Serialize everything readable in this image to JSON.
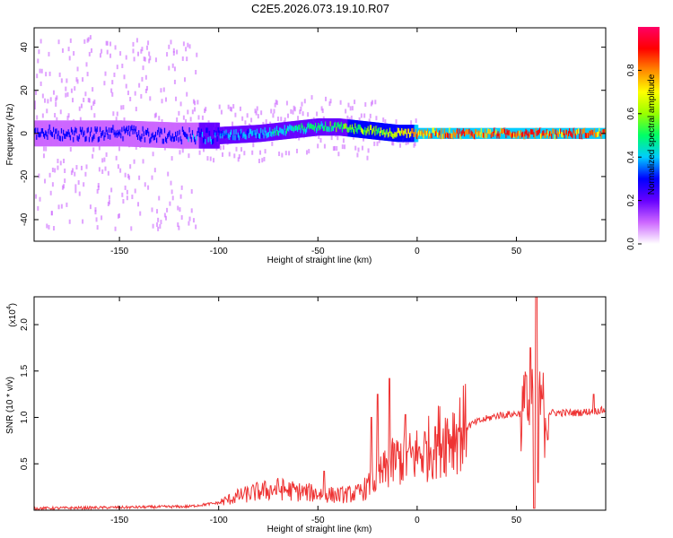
{
  "figure": {
    "title": "C2E5.2026.073.19.10.R07"
  },
  "chart_data": [
    {
      "type": "heatmap",
      "xlabel": "Height of straight line (km)",
      "ylabel": "Frequency (Hz)",
      "xlim": [
        -193,
        95
      ],
      "ylim": [
        -50,
        49
      ],
      "xticks": [
        -150,
        -100,
        -50,
        0,
        50
      ],
      "yticks": [
        -40,
        -20,
        0,
        20,
        40
      ],
      "colorbar": {
        "label": "Normalized spectral amplitude",
        "range": [
          0,
          1
        ],
        "ticks": [
          "0.0",
          "0.2",
          "0.4",
          "0.6",
          "0.8"
        ],
        "colors": [
          "#ffffff",
          "#cc66ff",
          "#6600ff",
          "#0000ff",
          "#00ccff",
          "#00ff66",
          "#99ff00",
          "#ffff00",
          "#ff8800",
          "#ff0000",
          "#ff0066"
        ]
      },
      "ridge": {
        "x": [
          -193,
          -150,
          -120,
          -100,
          -80,
          -60,
          -50,
          -40,
          -30,
          -20,
          -10,
          0,
          10,
          30,
          60,
          95
        ],
        "center_freq": [
          0,
          0,
          -1,
          -1,
          0,
          2,
          3,
          3,
          2,
          1,
          0,
          0,
          0,
          0,
          0,
          0
        ],
        "amplitude": [
          0.35,
          0.35,
          0.35,
          0.4,
          0.45,
          0.5,
          0.55,
          0.6,
          0.65,
          0.7,
          0.75,
          0.9,
          0.9,
          0.95,
          0.95,
          0.95
        ]
      }
    },
    {
      "type": "line",
      "xlabel": "Height of straight line (km)",
      "ylabel": "SNR (10 * v/v)",
      "yscale_label": "(x10",
      "yscale_exp": "4",
      "xlim": [
        -193,
        95
      ],
      "ylim": [
        0,
        2.3
      ],
      "xticks": [
        -150,
        -100,
        -50,
        0,
        50
      ],
      "yticks": [
        "0.5",
        "1.0",
        "1.5",
        "2.0"
      ],
      "color": "#ee3333",
      "envelope": {
        "x": [
          -193,
          -150,
          -115,
          -100,
          -90,
          -80,
          -70,
          -60,
          -50,
          -40,
          -30,
          -25,
          -20,
          -15,
          -10,
          -5,
          0,
          5,
          10,
          20,
          30,
          40,
          55,
          60,
          65,
          70,
          80,
          90,
          95
        ],
        "y": [
          0.02,
          0.03,
          0.04,
          0.08,
          0.15,
          0.2,
          0.23,
          0.2,
          0.18,
          0.16,
          0.18,
          0.25,
          0.35,
          0.45,
          0.55,
          0.55,
          0.6,
          0.65,
          0.75,
          0.85,
          0.95,
          1.02,
          1.05,
          1.05,
          1.05,
          1.05,
          1.05,
          1.07,
          1.08
        ]
      },
      "spikes": [
        {
          "x": -47,
          "y": 0.42
        },
        {
          "x": -23,
          "y": 1.0
        },
        {
          "x": -20,
          "y": 1.25
        },
        {
          "x": -14,
          "y": 1.42
        },
        {
          "x": -6,
          "y": 1.03
        },
        {
          "x": 9,
          "y": 0.9
        },
        {
          "x": 55,
          "y": 1.45
        },
        {
          "x": 57,
          "y": 1.75
        },
        {
          "x": 60,
          "y": 2.3
        },
        {
          "x": 63,
          "y": 1.2
        },
        {
          "x": 89,
          "y": 1.25
        }
      ],
      "dips": [
        {
          "x": 59,
          "y": 0.02
        },
        {
          "x": 61,
          "y": 0.3
        }
      ]
    }
  ]
}
